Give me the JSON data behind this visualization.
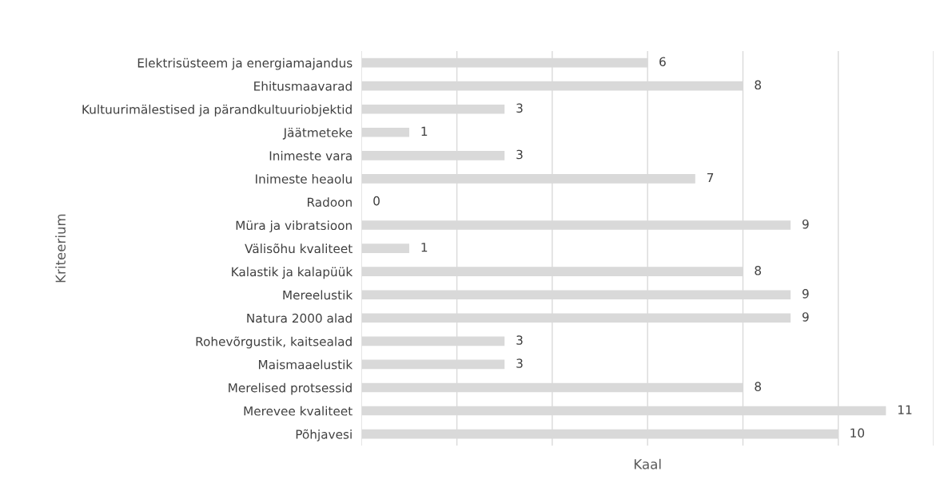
{
  "chart_data": {
    "type": "bar",
    "orientation": "horizontal",
    "xlabel": "Kaal",
    "ylabel": "Kriteerium",
    "categories": [
      "Elektrisüsteem ja energiamajandus",
      "Ehitusmaavarad",
      "Kultuurimälestised ja pärandkultuuriobjektid",
      "Jäätmeteke",
      "Inimeste vara",
      "Inimeste heaolu",
      "Radoon",
      "Müra ja vibratsioon",
      "Välisõhu kvaliteet",
      "Kalastik ja kalapüük",
      "Mereelustik",
      "Natura 2000 alad",
      "Rohevõrgustik, kaitsealad",
      "Maismaaelustik",
      "Merelised protsessid",
      "Merevee kvaliteet",
      "Põhjavesi"
    ],
    "values": [
      6,
      8,
      3,
      1,
      3,
      7,
      0,
      9,
      1,
      8,
      9,
      9,
      3,
      3,
      8,
      11,
      10
    ],
    "color": "#d9d9d9",
    "data_labels": true,
    "grid": "x",
    "tick_labels": "y",
    "xlim": [
      0,
      12
    ],
    "xticks": [
      {
        "value": 0,
        "label": null
      },
      {
        "value": 2,
        "label": null
      },
      {
        "value": 4,
        "label": null
      },
      {
        "value": 6,
        "label": null
      },
      {
        "value": 8,
        "label": null
      },
      {
        "value": 10,
        "label": null
      },
      {
        "value": 12,
        "label": null
      }
    ]
  }
}
